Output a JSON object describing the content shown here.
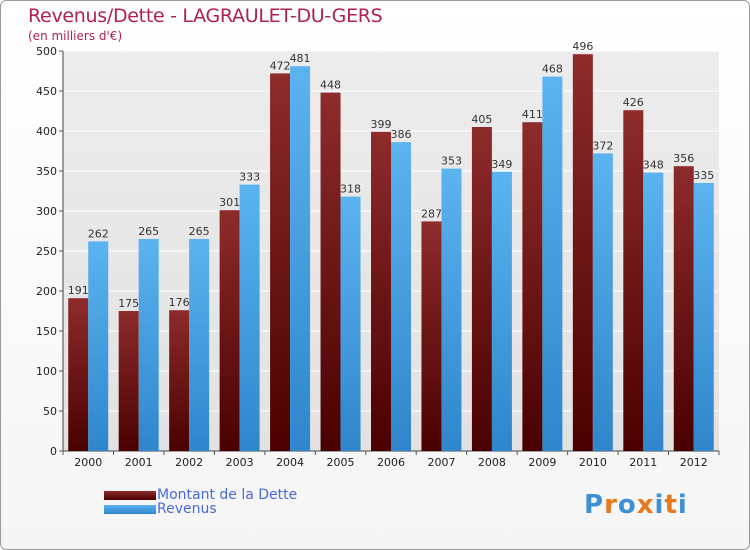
{
  "header": {
    "title": "Revenus/Dette - LAGRAULET-DU-GERS",
    "subtitle": "(en milliers d'€)"
  },
  "logo": {
    "text": "Proxiti",
    "letter_colors": [
      "#3d8fd6",
      "#e8791a",
      "#3d8fd6",
      "#e8791a",
      "#3d8fd6",
      "#e8791a",
      "#3d8fd6"
    ]
  },
  "colors": {
    "dette": "#7a1b1b",
    "revenus": "#4aa5e8"
  },
  "chart_data": {
    "type": "bar",
    "title": "Revenus/Dette - LAGRAULET-DU-GERS",
    "ylabel": "(en milliers d'€)",
    "xlabel": "",
    "categories": [
      "2000",
      "2001",
      "2002",
      "2003",
      "2004",
      "2005",
      "2006",
      "2007",
      "2008",
      "2009",
      "2010",
      "2011",
      "2012"
    ],
    "series": [
      {
        "name": "Montant de la Dette",
        "values": [
          191,
          175,
          176,
          301,
          472,
          448,
          399,
          287,
          405,
          411,
          496,
          426,
          356
        ]
      },
      {
        "name": "Revenus",
        "values": [
          262,
          265,
          265,
          333,
          481,
          318,
          386,
          353,
          349,
          468,
          372,
          348,
          335
        ]
      }
    ],
    "ylim": [
      0,
      500
    ],
    "yticks": [
      0,
      50,
      100,
      150,
      200,
      250,
      300,
      350,
      400,
      450,
      500
    ],
    "grid": true,
    "legend": "bottom-left"
  }
}
